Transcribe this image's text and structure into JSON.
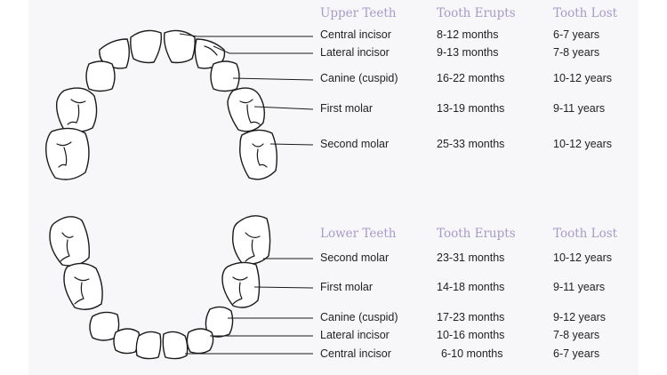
{
  "upper": {
    "header": {
      "teeth": "Upper Teeth",
      "erupts": "Tooth Erupts",
      "lost": "Tooth Lost"
    },
    "rows": [
      {
        "tooth": "Central incisor",
        "erupts": "8-12 months",
        "lost": "6-7 years"
      },
      {
        "tooth": "Lateral incisor",
        "erupts": "9-13 months",
        "lost": "7-8 years"
      },
      {
        "tooth": "Canine (cuspid)",
        "erupts": "16-22 months",
        "lost": "10-12 years"
      },
      {
        "tooth": "First molar",
        "erupts": "13-19 months",
        "lost": "9-11 years"
      },
      {
        "tooth": "Second molar",
        "erupts": "25-33 months",
        "lost": "10-12 years"
      }
    ]
  },
  "lower": {
    "header": {
      "teeth": "Lower Teeth",
      "erupts": "Tooth Erupts",
      "lost": "Tooth Lost"
    },
    "rows": [
      {
        "tooth": "Second molar",
        "erupts": "23-31 months",
        "lost": "10-12 years"
      },
      {
        "tooth": "First molar",
        "erupts": "14-18 months",
        "lost": "9-11 years"
      },
      {
        "tooth": "Canine (cuspid)",
        "erupts": "17-23 months",
        "lost": "9-12 years"
      },
      {
        "tooth": "Lateral incisor",
        "erupts": "10-16 months",
        "lost": "7-8 years"
      },
      {
        "tooth": "Central incisor",
        "erupts": "6-10 months",
        "lost": "6-7 years"
      }
    ]
  },
  "colors": {
    "header": "#a79bc7",
    "text": "#222222",
    "panel": "#f7f6f9",
    "outline": "#1a1a1a"
  }
}
